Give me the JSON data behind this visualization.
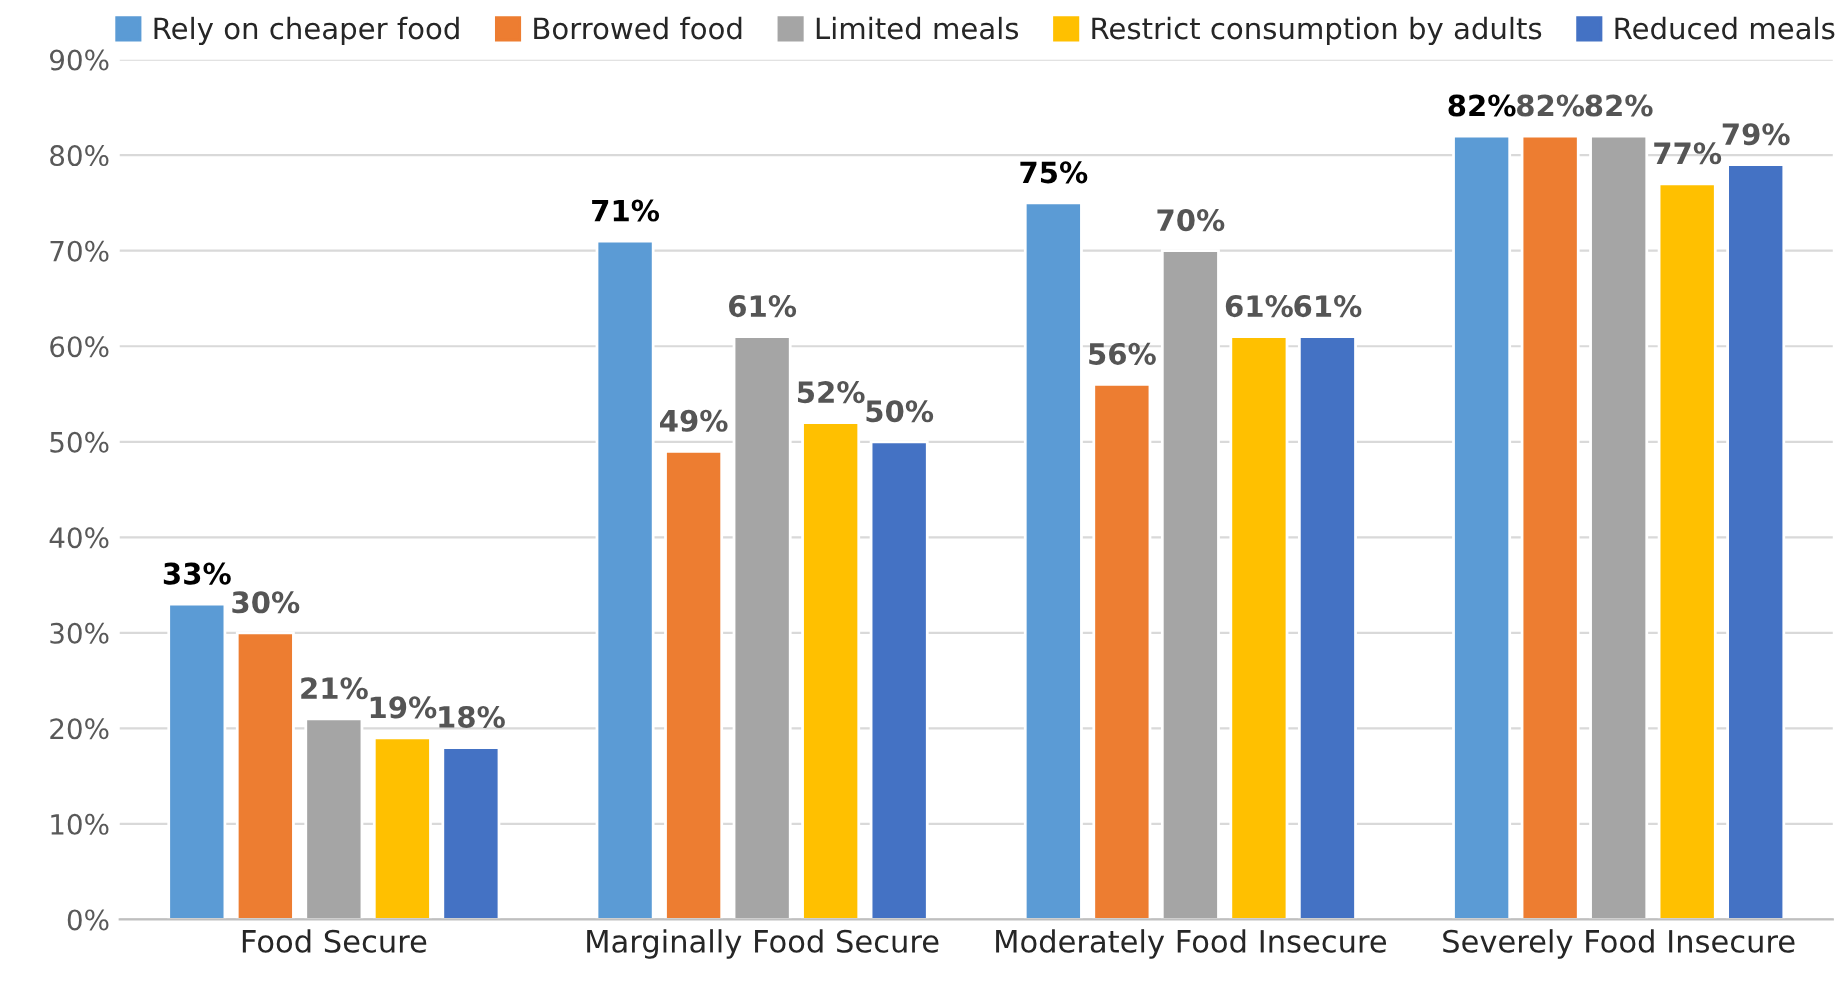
{
  "chart_data": {
    "type": "bar",
    "categories": [
      "Food Secure",
      "Marginally Food Secure",
      "Moderately Food Insecure",
      "Severely Food Insecure"
    ],
    "series": [
      {
        "name": "Rely on cheaper food",
        "color": "#5b9bd5",
        "values": [
          33,
          71,
          75,
          82
        ],
        "value_labels": [
          "33%",
          "71%",
          "75%",
          "82%"
        ]
      },
      {
        "name": "Borrowed food",
        "color": "#ed7d31",
        "values": [
          30,
          49,
          56,
          82
        ],
        "value_labels": [
          "30%",
          "49%",
          "56%",
          "82%"
        ]
      },
      {
        "name": "Limited meals",
        "color": "#a5a5a5",
        "values": [
          21,
          61,
          70,
          82
        ],
        "value_labels": [
          "21%",
          "61%",
          "70%",
          "82%"
        ]
      },
      {
        "name": "Restrict consumption by adults",
        "color": "#ffc000",
        "values": [
          19,
          52,
          61,
          77
        ],
        "value_labels": [
          "19%",
          "52%",
          "61%",
          "77%"
        ]
      },
      {
        "name": "Reduced meals",
        "color": "#4472c4",
        "values": [
          18,
          50,
          61,
          79
        ],
        "value_labels": [
          "18%",
          "50%",
          "61%",
          "79%"
        ]
      }
    ],
    "ylim": [
      0,
      90
    ],
    "yticks": [
      {
        "value": 0,
        "label": "0%"
      },
      {
        "value": 10,
        "label": "10%"
      },
      {
        "value": 20,
        "label": "20%"
      },
      {
        "value": 30,
        "label": "30%"
      },
      {
        "value": 40,
        "label": "40%"
      },
      {
        "value": 50,
        "label": "50%"
      },
      {
        "value": 60,
        "label": "60%"
      },
      {
        "value": 70,
        "label": "70%"
      },
      {
        "value": 80,
        "label": "80%"
      },
      {
        "value": 90,
        "label": "90%"
      }
    ],
    "grid": "y",
    "legend": "top"
  }
}
